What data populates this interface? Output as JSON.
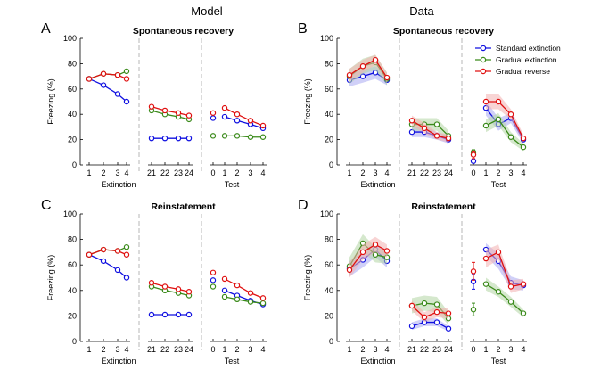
{
  "column_titles": {
    "model": "Model",
    "data": "Data"
  },
  "panel_letters": {
    "A": "A",
    "B": "B",
    "C": "C",
    "D": "D"
  },
  "legend": [
    {
      "name": "Standard extinction",
      "color": "#1010e0"
    },
    {
      "name": "Gradual extinction",
      "color": "#3a8a1a"
    },
    {
      "name": "Gradual reverse",
      "color": "#e01010"
    }
  ],
  "colors": {
    "blue": "#1010e0",
    "green": "#3a8a1a",
    "red": "#e01010",
    "blue_fill": "#a9a9f2",
    "green_fill": "#b3d6a4",
    "red_fill": "#f2b0b0",
    "divider": "#b0b0b0"
  },
  "chart_data": [
    {
      "id": "A",
      "type": "line",
      "title": "Spontaneous recovery",
      "ylabel": "Freezing (%)",
      "ylim": [
        0,
        100
      ],
      "yticks": [
        0,
        20,
        40,
        60,
        80,
        100
      ],
      "xlabels": [
        "Extinction",
        "Test"
      ],
      "groups": [
        {
          "ticks": [
            "1",
            "2",
            "3",
            "4"
          ],
          "series": [
            {
              "name": "Standard extinction",
              "values": [
                68,
                63,
                56,
                50
              ]
            },
            {
              "name": "Gradual extinction",
              "values": [
                68,
                72,
                71,
                74
              ]
            },
            {
              "name": "Gradual reverse",
              "values": [
                68,
                72,
                71,
                68
              ]
            }
          ]
        },
        {
          "ticks": [
            "21",
            "22",
            "23",
            "24"
          ],
          "series": [
            {
              "name": "Standard extinction",
              "values": [
                21,
                21,
                21,
                21
              ]
            },
            {
              "name": "Gradual extinction",
              "values": [
                43,
                40,
                38,
                36
              ]
            },
            {
              "name": "Gradual reverse",
              "values": [
                46,
                43,
                41,
                39
              ]
            }
          ]
        },
        {
          "ticks": [
            "0",
            "1",
            "2",
            "3",
            "4"
          ],
          "singleFirst": true,
          "series": [
            {
              "name": "Standard extinction",
              "values": [
                37,
                38,
                35,
                32,
                29
              ]
            },
            {
              "name": "Gradual extinction",
              "values": [
                23,
                23,
                23,
                22,
                22
              ]
            },
            {
              "name": "Gradual reverse",
              "values": [
                41,
                45,
                40,
                35,
                31
              ]
            }
          ]
        }
      ]
    },
    {
      "id": "B",
      "type": "line",
      "title": "Spontaneous recovery",
      "ylabel": "Freezing (%)",
      "ylim": [
        0,
        100
      ],
      "yticks": [
        0,
        20,
        40,
        60,
        80,
        100
      ],
      "xlabels": [
        "Extinction",
        "Test"
      ],
      "groups": [
        {
          "ticks": [
            "1",
            "2",
            "3",
            "4"
          ],
          "series": [
            {
              "name": "Standard extinction",
              "values": [
                67,
                70,
                73,
                67
              ],
              "err": [
                5,
                5,
                5,
                4
              ]
            },
            {
              "name": "Gradual extinction",
              "values": [
                70,
                78,
                81,
                68
              ],
              "err": [
                6,
                6,
                6,
                5
              ]
            },
            {
              "name": "Gradual reverse",
              "values": [
                71,
                78,
                83,
                69
              ],
              "err": [
                5,
                5,
                4,
                4
              ]
            }
          ]
        },
        {
          "ticks": [
            "21",
            "22",
            "23",
            "24"
          ],
          "series": [
            {
              "name": "Standard extinction",
              "values": [
                26,
                26,
                23,
                20
              ],
              "err": [
                4,
                4,
                3,
                3
              ]
            },
            {
              "name": "Gradual extinction",
              "values": [
                32,
                32,
                32,
                23
              ],
              "err": [
                5,
                5,
                5,
                4
              ]
            },
            {
              "name": "Gradual reverse",
              "values": [
                35,
                29,
                23,
                21
              ],
              "err": [
                4,
                4,
                3,
                3
              ]
            }
          ]
        },
        {
          "ticks": [
            "0",
            "1",
            "2",
            "3",
            "4"
          ],
          "singleFirst": true,
          "series": [
            {
              "name": "Standard extinction",
              "values": [
                3,
                45,
                32,
                37,
                20
              ],
              "err": [
                1,
                6,
                5,
                4,
                3
              ]
            },
            {
              "name": "Gradual extinction",
              "values": [
                10,
                31,
                36,
                22,
                14
              ],
              "err": [
                2,
                5,
                5,
                4,
                3
              ]
            },
            {
              "name": "Gradual reverse",
              "values": [
                8,
                50,
                50,
                40,
                21
              ],
              "err": [
                3,
                6,
                6,
                4,
                3
              ]
            }
          ]
        }
      ]
    },
    {
      "id": "C",
      "type": "line",
      "title": "Reinstatement",
      "ylabel": "Freezing (%)",
      "ylim": [
        0,
        100
      ],
      "yticks": [
        0,
        20,
        40,
        60,
        80,
        100
      ],
      "xlabels": [
        "Extinction",
        "Test"
      ],
      "groups": [
        {
          "ticks": [
            "1",
            "2",
            "3",
            "4"
          ],
          "series": [
            {
              "name": "Standard extinction",
              "values": [
                68,
                63,
                56,
                50
              ]
            },
            {
              "name": "Gradual extinction",
              "values": [
                68,
                72,
                71,
                74
              ]
            },
            {
              "name": "Gradual reverse",
              "values": [
                68,
                72,
                71,
                68
              ]
            }
          ]
        },
        {
          "ticks": [
            "21",
            "22",
            "23",
            "24"
          ],
          "series": [
            {
              "name": "Standard extinction",
              "values": [
                21,
                21,
                21,
                21
              ]
            },
            {
              "name": "Gradual extinction",
              "values": [
                43,
                40,
                38,
                36
              ]
            },
            {
              "name": "Gradual reverse",
              "values": [
                46,
                43,
                41,
                39
              ]
            }
          ]
        },
        {
          "ticks": [
            "0",
            "1",
            "2",
            "3",
            "4"
          ],
          "singleFirst": true,
          "series": [
            {
              "name": "Standard extinction",
              "values": [
                48,
                40,
                36,
                32,
                29
              ]
            },
            {
              "name": "Gradual extinction",
              "values": [
                43,
                35,
                33,
                31,
                30
              ]
            },
            {
              "name": "Gradual reverse",
              "values": [
                54,
                49,
                44,
                38,
                34
              ]
            }
          ]
        }
      ]
    },
    {
      "id": "D",
      "type": "line",
      "title": "Reinstatement",
      "ylabel": "Freezing (%)",
      "ylim": [
        0,
        100
      ],
      "yticks": [
        0,
        20,
        40,
        60,
        80,
        100
      ],
      "xlabels": [
        "Extinction",
        "Test"
      ],
      "groups": [
        {
          "ticks": [
            "1",
            "2",
            "3",
            "4"
          ],
          "series": [
            {
              "name": "Standard extinction",
              "values": [
                57,
                64,
                72,
                63
              ],
              "err": [
                6,
                6,
                6,
                5
              ]
            },
            {
              "name": "Gradual extinction",
              "values": [
                59,
                77,
                68,
                66
              ],
              "err": [
                7,
                7,
                6,
                5
              ]
            },
            {
              "name": "Gradual reverse",
              "values": [
                56,
                70,
                76,
                71
              ],
              "err": [
                6,
                6,
                6,
                5
              ]
            }
          ]
        },
        {
          "ticks": [
            "21",
            "22",
            "23",
            "24"
          ],
          "series": [
            {
              "name": "Standard extinction",
              "values": [
                12,
                15,
                15,
                10
              ],
              "err": [
                3,
                3,
                3,
                2
              ]
            },
            {
              "name": "Gradual extinction",
              "values": [
                28,
                30,
                29,
                18
              ],
              "err": [
                6,
                6,
                6,
                5
              ]
            },
            {
              "name": "Gradual reverse",
              "values": [
                28,
                19,
                23,
                22
              ],
              "err": [
                4,
                4,
                4,
                4
              ]
            }
          ]
        },
        {
          "ticks": [
            "0",
            "1",
            "2",
            "3",
            "4"
          ],
          "singleFirst": true,
          "series": [
            {
              "name": "Standard extinction",
              "values": [
                47,
                72,
                63,
                46,
                44
              ],
              "err": [
                6,
                5,
                6,
                5,
                4
              ]
            },
            {
              "name": "Gradual extinction",
              "values": [
                25,
                45,
                39,
                31,
                22
              ],
              "err": [
                5,
                5,
                4,
                4,
                3
              ]
            },
            {
              "name": "Gradual reverse",
              "values": [
                55,
                65,
                70,
                43,
                45
              ],
              "err": [
                7,
                7,
                6,
                5,
                4
              ]
            }
          ]
        }
      ]
    }
  ]
}
